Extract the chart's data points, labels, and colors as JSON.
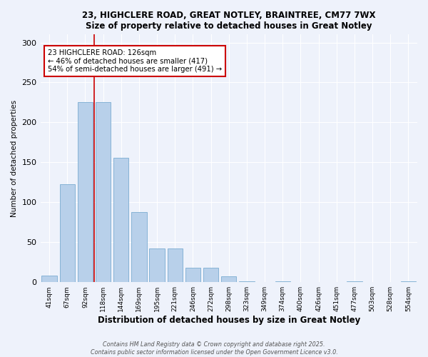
{
  "title_line1": "23, HIGHCLERE ROAD, GREAT NOTLEY, BRAINTREE, CM77 7WX",
  "title_line2": "Size of property relative to detached houses in Great Notley",
  "xlabel": "Distribution of detached houses by size in Great Notley",
  "ylabel": "Number of detached properties",
  "categories": [
    "41sqm",
    "67sqm",
    "92sqm",
    "118sqm",
    "144sqm",
    "169sqm",
    "195sqm",
    "221sqm",
    "246sqm",
    "272sqm",
    "298sqm",
    "323sqm",
    "349sqm",
    "374sqm",
    "400sqm",
    "426sqm",
    "451sqm",
    "477sqm",
    "503sqm",
    "528sqm",
    "554sqm"
  ],
  "values": [
    8,
    123,
    225,
    225,
    156,
    88,
    42,
    42,
    18,
    18,
    7,
    1,
    0,
    1,
    0,
    0,
    0,
    1,
    0,
    0,
    1
  ],
  "bar_color": "#b8d0ea",
  "bar_edge_color": "#7aacd1",
  "background_color": "#eef2fb",
  "grid_color": "#ffffff",
  "vline_x": 2.5,
  "vline_color": "#cc0000",
  "annotation_text": "23 HIGHCLERE ROAD: 126sqm\n← 46% of detached houses are smaller (417)\n54% of semi-detached houses are larger (491) →",
  "annotation_box_color": "#cc0000",
  "footer_line1": "Contains HM Land Registry data © Crown copyright and database right 2025.",
  "footer_line2": "Contains public sector information licensed under the Open Government Licence v3.0.",
  "ylim": [
    0,
    310
  ],
  "yticks": [
    0,
    50,
    100,
    150,
    200,
    250,
    300
  ]
}
